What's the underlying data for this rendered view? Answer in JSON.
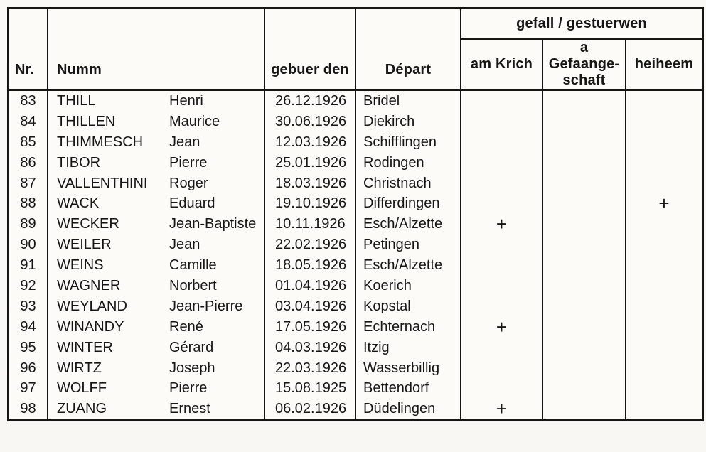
{
  "table": {
    "headers": {
      "nr": "Nr.",
      "numm": "Numm",
      "gebuer_den": "gebuer den",
      "depart": "Départ",
      "group": "gefall / gestuerwen",
      "am_krich": "am Krich",
      "gefaangeschaft_line1": "a Gefaange-",
      "gefaangeschaft_line2": "schaft",
      "heiheem": "heiheem"
    },
    "rows": [
      {
        "nr": "83",
        "surname": "THILL",
        "firstname": "Henri",
        "born": "26.12.1926",
        "depart": "Bridel",
        "am_krich": "",
        "gefaangeschaft": "",
        "heiheem": ""
      },
      {
        "nr": "84",
        "surname": "THILLEN",
        "firstname": "Maurice",
        "born": "30.06.1926",
        "depart": "Diekirch",
        "am_krich": "",
        "gefaangeschaft": "",
        "heiheem": ""
      },
      {
        "nr": "85",
        "surname": "THIMMESCH",
        "firstname": "Jean",
        "born": "12.03.1926",
        "depart": "Schifflingen",
        "am_krich": "",
        "gefaangeschaft": "",
        "heiheem": ""
      },
      {
        "nr": "86",
        "surname": "TIBOR",
        "firstname": "Pierre",
        "born": "25.01.1926",
        "depart": "Rodingen",
        "am_krich": "",
        "gefaangeschaft": "",
        "heiheem": ""
      },
      {
        "nr": "87",
        "surname": "VALLENTHINI",
        "firstname": "Roger",
        "born": "18.03.1926",
        "depart": "Christnach",
        "am_krich": "",
        "gefaangeschaft": "",
        "heiheem": ""
      },
      {
        "nr": "88",
        "surname": "WACK",
        "firstname": "Eduard",
        "born": "19.10.1926",
        "depart": "Differdingen",
        "am_krich": "",
        "gefaangeschaft": "",
        "heiheem": "+"
      },
      {
        "nr": "89",
        "surname": "WECKER",
        "firstname": "Jean-Baptiste",
        "born": "10.11.1926",
        "depart": "Esch/Alzette",
        "am_krich": "+",
        "gefaangeschaft": "",
        "heiheem": ""
      },
      {
        "nr": "90",
        "surname": "WEILER",
        "firstname": "Jean",
        "born": "22.02.1926",
        "depart": "Petingen",
        "am_krich": "",
        "gefaangeschaft": "",
        "heiheem": ""
      },
      {
        "nr": "91",
        "surname": "WEINS",
        "firstname": "Camille",
        "born": "18.05.1926",
        "depart": "Esch/Alzette",
        "am_krich": "",
        "gefaangeschaft": "",
        "heiheem": ""
      },
      {
        "nr": "92",
        "surname": "WAGNER",
        "firstname": "Norbert",
        "born": "01.04.1926",
        "depart": "Koerich",
        "am_krich": "",
        "gefaangeschaft": "",
        "heiheem": ""
      },
      {
        "nr": "93",
        "surname": "WEYLAND",
        "firstname": "Jean-Pierre",
        "born": "03.04.1926",
        "depart": "Kopstal",
        "am_krich": "",
        "gefaangeschaft": "",
        "heiheem": ""
      },
      {
        "nr": "94",
        "surname": "WINANDY",
        "firstname": "René",
        "born": "17.05.1926",
        "depart": "Echternach",
        "am_krich": "+",
        "gefaangeschaft": "",
        "heiheem": ""
      },
      {
        "nr": "95",
        "surname": "WINTER",
        "firstname": "Gérard",
        "born": "04.03.1926",
        "depart": "Itzig",
        "am_krich": "",
        "gefaangeschaft": "",
        "heiheem": ""
      },
      {
        "nr": "96",
        "surname": "WIRTZ",
        "firstname": "Joseph",
        "born": "22.03.1926",
        "depart": "Wasserbillig",
        "am_krich": "",
        "gefaangeschaft": "",
        "heiheem": ""
      },
      {
        "nr": "97",
        "surname": "WOLFF",
        "firstname": "Pierre",
        "born": "15.08.1925",
        "depart": "Bettendorf",
        "am_krich": "",
        "gefaangeschaft": "",
        "heiheem": ""
      },
      {
        "nr": "98",
        "surname": "ZUANG",
        "firstname": "Ernest",
        "born": "06.02.1926",
        "depart": "Düdelingen",
        "am_krich": "+",
        "gefaangeschaft": "",
        "heiheem": ""
      }
    ]
  }
}
